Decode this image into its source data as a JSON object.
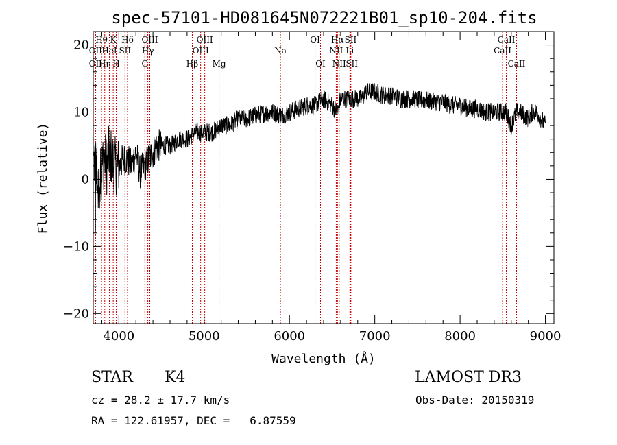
{
  "chart_data": {
    "type": "line",
    "title": "spec-57101-HD081645N072221B01_sp10-204.fits",
    "xlabel": "Wavelength (Å)",
    "ylabel": "Flux (relative)",
    "xlim": [
      3700,
      9100
    ],
    "ylim": [
      -21.5,
      22
    ],
    "xticks": [
      4000,
      5000,
      6000,
      7000,
      8000,
      9000
    ],
    "yticks": [
      -20,
      -10,
      0,
      10,
      20
    ],
    "series": [
      {
        "name": "flux",
        "x": [
          3700,
          3720,
          3740,
          3760,
          3780,
          3800,
          3830,
          3860,
          3890,
          3920,
          3950,
          3980,
          4010,
          4050,
          4100,
          4150,
          4200,
          4250,
          4300,
          4350,
          4400,
          4450,
          4500,
          4550,
          4600,
          4700,
          4800,
          4900,
          5000,
          5100,
          5200,
          5300,
          5400,
          5500,
          5600,
          5700,
          5800,
          5900,
          6000,
          6100,
          6200,
          6300,
          6400,
          6500,
          6560,
          6600,
          6700,
          6800,
          6850,
          6900,
          7000,
          7100,
          7200,
          7300,
          7400,
          7500,
          7600,
          7700,
          7800,
          7900,
          8000,
          8100,
          8200,
          8300,
          8400,
          8500,
          8540,
          8600,
          8660,
          8700,
          8750,
          8800,
          8850,
          8900,
          8950,
          9000
        ],
        "y": [
          2,
          3,
          1,
          -2,
          0,
          2,
          3,
          2,
          4,
          3,
          2,
          2,
          2,
          3,
          3,
          2,
          4,
          1,
          2,
          3,
          4,
          5,
          5,
          5,
          5,
          6,
          6,
          7,
          7,
          7,
          8,
          8,
          9,
          9,
          9.5,
          9.8,
          10,
          9.5,
          10,
          10.5,
          11,
          11,
          12,
          11,
          10,
          12,
          12,
          12,
          12,
          13,
          13,
          12.5,
          12.5,
          12,
          12,
          11.8,
          11.8,
          11.5,
          11.5,
          11,
          11,
          10.5,
          10.5,
          10,
          10,
          10,
          10,
          8,
          10,
          10,
          9.5,
          9,
          10,
          10,
          9,
          8
        ]
      }
    ],
    "lines": [
      {
        "label": "Hθ",
        "wavelength": 3797,
        "row": 1
      },
      {
        "label": "OII",
        "wavelength": 3727,
        "row": 2
      },
      {
        "label": "OII",
        "wavelength": 3727,
        "row": 3
      },
      {
        "label": "Hη",
        "wavelength": 3835,
        "row": 3
      },
      {
        "label": "HeI",
        "wavelength": 3889,
        "row": 2
      },
      {
        "label": "K",
        "wavelength": 3934,
        "row": 1
      },
      {
        "label": "H",
        "wavelength": 3969,
        "row": 3
      },
      {
        "label": "SII",
        "wavelength": 4072,
        "row": 2
      },
      {
        "label": "Hδ",
        "wavelength": 4102,
        "row": 1
      },
      {
        "label": "OIII",
        "wavelength": 4363,
        "row": 1
      },
      {
        "label": "Hγ",
        "wavelength": 4340,
        "row": 2
      },
      {
        "label": "G",
        "wavelength": 4305,
        "row": 3
      },
      {
        "label": "Hβ",
        "wavelength": 4861,
        "row": 3
      },
      {
        "label": "OIII",
        "wavelength": 5007,
        "row": 1
      },
      {
        "label": "OIII",
        "wavelength": 4959,
        "row": 2
      },
      {
        "label": "Mg",
        "wavelength": 5175,
        "row": 3
      },
      {
        "label": "Na",
        "wavelength": 5894,
        "row": 2
      },
      {
        "label": "OI",
        "wavelength": 6300,
        "row": 1
      },
      {
        "label": "OI",
        "wavelength": 6364,
        "row": 3
      },
      {
        "label": "Hα",
        "wavelength": 6563,
        "row": 1
      },
      {
        "label": "NII",
        "wavelength": 6548,
        "row": 2
      },
      {
        "label": "NII",
        "wavelength": 6583,
        "row": 3
      },
      {
        "label": "SII",
        "wavelength": 6717,
        "row": 1
      },
      {
        "label": "Li",
        "wavelength": 6708,
        "row": 2
      },
      {
        "label": "SII",
        "wavelength": 6731,
        "row": 3
      },
      {
        "label": "CaII",
        "wavelength": 8542,
        "row": 1
      },
      {
        "label": "CaII",
        "wavelength": 8498,
        "row": 2
      },
      {
        "label": "CaII",
        "wavelength": 8662,
        "row": 3
      }
    ]
  },
  "footer": {
    "class": "STAR",
    "subclass": "K4",
    "survey": "LAMOST DR3",
    "cz": "cz = 28.2 ± 17.7 km/s",
    "obs_date": "Obs-Date: 20150319",
    "radec": "RA = 122.61957, DEC =   6.87559"
  }
}
